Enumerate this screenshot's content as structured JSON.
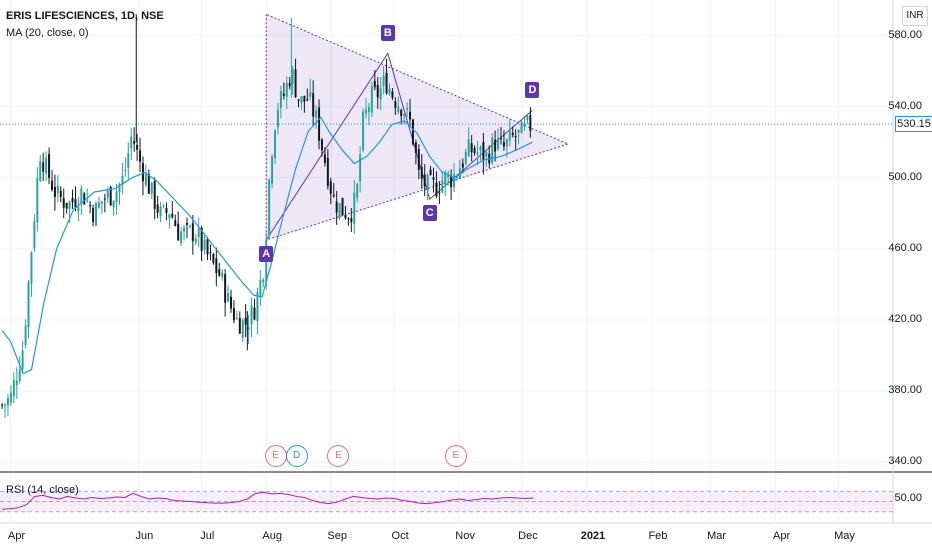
{
  "header": {
    "symbol_title": "ERIS LIFESCIENCES, 1D, NSE",
    "indicator": "MA (20, close, 0)",
    "currency": "INR"
  },
  "rsi": {
    "label": "RSI (14, close)",
    "level_label": "50.00"
  },
  "last_price": "530.15",
  "pattern_points": [
    "A",
    "B",
    "C",
    "D"
  ],
  "events": [
    {
      "letter": "E",
      "kind": "e",
      "date_index": 0
    },
    {
      "letter": "D",
      "kind": "d",
      "date_index": 1
    },
    {
      "letter": "E",
      "kind": "e",
      "date_index": 2
    },
    {
      "letter": "E",
      "kind": "e",
      "date_index": 3
    }
  ],
  "colors": {
    "up": "#26a69a",
    "down": "#131722",
    "ma": "#2196f3",
    "pattern": "#5e35b1",
    "rsi": "#9c27b0",
    "grid": "#f0f3fa"
  },
  "chart_data": {
    "type": "candlestick",
    "title": "ERIS LIFESCIENCES, 1D, NSE",
    "ylim": [
      330,
      600
    ],
    "yticks": [
      340,
      380,
      420,
      460,
      500,
      540,
      580
    ],
    "ytick_labels": [
      "340.00",
      "380.00",
      "420.00",
      "460.00",
      "500.00",
      "540.00",
      "580.00"
    ],
    "xticks": [
      {
        "label": "Apr",
        "day": 0,
        "bold": false
      },
      {
        "label": "Jun",
        "day": 61,
        "bold": false
      },
      {
        "label": "Jul",
        "day": 91,
        "bold": false
      },
      {
        "label": "Aug",
        "day": 122,
        "bold": false
      },
      {
        "label": "Sep",
        "day": 153,
        "bold": false
      },
      {
        "label": "Oct",
        "day": 183,
        "bold": false
      },
      {
        "label": "Nov",
        "day": 214,
        "bold": false
      },
      {
        "label": "Dec",
        "day": 244,
        "bold": false
      },
      {
        "label": "2021",
        "day": 275,
        "bold": true
      },
      {
        "label": "Feb",
        "day": 306,
        "bold": false
      },
      {
        "label": "Mar",
        "day": 334,
        "bold": false
      },
      {
        "label": "Apr",
        "day": 365,
        "bold": false
      },
      {
        "label": "May",
        "day": 395,
        "bold": false
      }
    ],
    "day_range": [
      -5,
      421
    ],
    "path_points": [
      [
        -4,
        372
      ],
      [
        0,
        376
      ],
      [
        6,
        405
      ],
      [
        10,
        460
      ],
      [
        14,
        515
      ],
      [
        17,
        505
      ],
      [
        22,
        490
      ],
      [
        28,
        485
      ],
      [
        34,
        492
      ],
      [
        40,
        480
      ],
      [
        44,
        488
      ],
      [
        50,
        492
      ],
      [
        54,
        500
      ],
      [
        58,
        525
      ],
      [
        60,
        515
      ],
      [
        63,
        505
      ],
      [
        67,
        492
      ],
      [
        72,
        478
      ],
      [
        76,
        482
      ],
      [
        80,
        470
      ],
      [
        84,
        468
      ],
      [
        88,
        470
      ],
      [
        92,
        460
      ],
      [
        96,
        452
      ],
      [
        100,
        445
      ],
      [
        104,
        430
      ],
      [
        108,
        420
      ],
      [
        112,
        418
      ],
      [
        116,
        425
      ],
      [
        119,
        440
      ],
      [
        121,
        452
      ],
      [
        124,
        510
      ],
      [
        127,
        540
      ],
      [
        130,
        545
      ],
      [
        134,
        560
      ],
      [
        138,
        542
      ],
      [
        142,
        545
      ],
      [
        146,
        532
      ],
      [
        150,
        510
      ],
      [
        154,
        488
      ],
      [
        158,
        482
      ],
      [
        162,
        480
      ],
      [
        165,
        488
      ],
      [
        168,
        530
      ],
      [
        172,
        545
      ],
      [
        176,
        548
      ],
      [
        179,
        555
      ],
      [
        183,
        545
      ],
      [
        187,
        540
      ],
      [
        191,
        530
      ],
      [
        195,
        500
      ],
      [
        199,
        495
      ],
      [
        203,
        495
      ],
      [
        207,
        500
      ],
      [
        211,
        500
      ],
      [
        215,
        508
      ],
      [
        219,
        516
      ],
      [
        223,
        514
      ],
      [
        227,
        512
      ],
      [
        231,
        520
      ],
      [
        235,
        516
      ],
      [
        239,
        522
      ],
      [
        243,
        524
      ],
      [
        246,
        528
      ],
      [
        249,
        530
      ]
    ],
    "ma_points": [
      [
        -4,
        414
      ],
      [
        0,
        408
      ],
      [
        6,
        390
      ],
      [
        10,
        392
      ],
      [
        16,
        430
      ],
      [
        22,
        460
      ],
      [
        30,
        482
      ],
      [
        40,
        492
      ],
      [
        50,
        494
      ],
      [
        58,
        500
      ],
      [
        64,
        503
      ],
      [
        70,
        498
      ],
      [
        78,
        488
      ],
      [
        86,
        478
      ],
      [
        94,
        466
      ],
      [
        102,
        454
      ],
      [
        110,
        442
      ],
      [
        116,
        434
      ],
      [
        120,
        433
      ],
      [
        124,
        450
      ],
      [
        130,
        478
      ],
      [
        136,
        505
      ],
      [
        142,
        526
      ],
      [
        148,
        534
      ],
      [
        152,
        526
      ],
      [
        158,
        516
      ],
      [
        164,
        508
      ],
      [
        170,
        512
      ],
      [
        176,
        520
      ],
      [
        182,
        530
      ],
      [
        188,
        532
      ],
      [
        194,
        525
      ],
      [
        200,
        512
      ],
      [
        206,
        503
      ],
      [
        212,
        500
      ],
      [
        218,
        505
      ],
      [
        226,
        510
      ],
      [
        234,
        512
      ],
      [
        242,
        516
      ],
      [
        249,
        520
      ]
    ],
    "pattern": {
      "A": {
        "day": 122,
        "price": 465
      },
      "B": {
        "day": 180,
        "price": 570
      },
      "C": {
        "day": 200,
        "price": 488
      },
      "D": {
        "day": 249,
        "price": 538
      },
      "triangle": [
        [
          122,
          592
        ],
        [
          122,
          465
        ],
        [
          266,
          519
        ]
      ]
    },
    "event_days": [
      126,
      136,
      156,
      212
    ],
    "rsi_series": [
      35,
      36,
      38,
      44,
      60,
      62,
      58,
      55,
      60,
      57,
      55,
      58,
      56,
      57,
      59,
      58,
      66,
      60,
      55,
      57,
      56,
      52,
      51,
      50,
      49,
      48,
      47,
      47,
      48,
      50,
      55,
      66,
      68,
      65,
      66,
      64,
      60,
      58,
      52,
      48,
      46,
      49,
      55,
      60,
      58,
      56,
      55,
      57,
      56,
      52,
      50,
      47,
      46,
      48,
      50,
      53,
      55,
      52,
      54,
      56,
      55,
      57,
      58,
      57,
      56,
      57
    ],
    "rsi_days_step": 3.9,
    "rsi_bands": [
      30,
      50,
      70
    ]
  }
}
